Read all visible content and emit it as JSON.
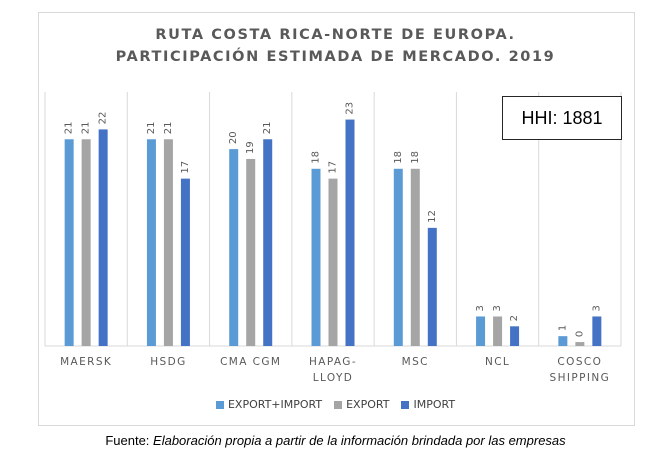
{
  "chart_data": {
    "type": "bar",
    "title_lines": [
      "RUTA COSTA RICA-NORTE DE EUROPA.",
      "PARTICIPACIÓN ESTIMADA DE MERCADO. 2019"
    ],
    "categories": [
      [
        "MAERSK"
      ],
      [
        "HSDG"
      ],
      [
        "CMA CGM"
      ],
      [
        "HAPAG-",
        "LLOYD"
      ],
      [
        "MSC"
      ],
      [
        "NCL"
      ],
      [
        "COSCO",
        "SHIPPING"
      ]
    ],
    "series": [
      {
        "name": "EXPORT+IMPORT",
        "color": "#5b9bd5",
        "values": [
          21,
          21,
          20,
          18,
          18,
          3,
          1
        ],
        "labels": [
          "21",
          "21",
          "20",
          "18",
          "18",
          "3",
          "1"
        ]
      },
      {
        "name": "EXPORT",
        "color": "#a5a5a5",
        "values": [
          21,
          21,
          19,
          17,
          18,
          3,
          0.4
        ],
        "labels": [
          "21",
          "21",
          "19",
          "17",
          "18",
          "3",
          "0"
        ]
      },
      {
        "name": "IMPORT",
        "color": "#4472c4",
        "values": [
          22,
          17,
          21,
          23,
          12,
          2,
          3
        ],
        "labels": [
          "22",
          "17",
          "21",
          "23",
          "12",
          "2",
          "3"
        ]
      }
    ],
    "ylim": [
      0,
      25.8
    ],
    "grid": "vertical separators between categories",
    "legend_position": "bottom",
    "annotation": "HHI: 1881"
  },
  "source": {
    "prefix": "Fuente: ",
    "text": "Elaboración propia a partir de la información brindada por las empresas"
  }
}
